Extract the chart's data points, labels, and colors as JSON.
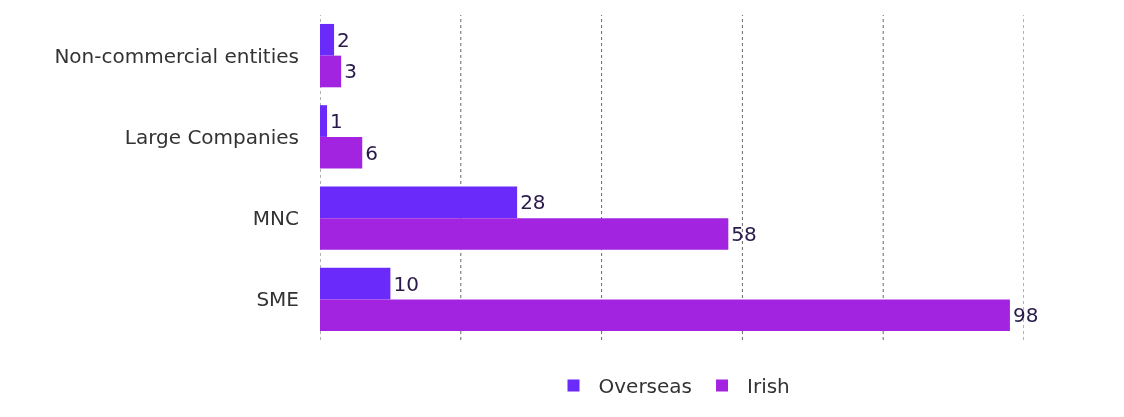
{
  "chart_data": {
    "type": "bar",
    "orientation": "horizontal",
    "categories": [
      "Non-commercial entities",
      "Large Companies",
      "MNC",
      "SME"
    ],
    "series": [
      {
        "name": "Overseas",
        "color": "#6a2bfa",
        "values": [
          2,
          1,
          28,
          10
        ]
      },
      {
        "name": "Irish",
        "color": "#a224e0",
        "values": [
          3,
          6,
          58,
          98
        ]
      }
    ],
    "xlim": [
      0,
      100
    ],
    "xticks": [
      {
        "value": 0,
        "label": null
      },
      {
        "value": 20,
        "label": null
      },
      {
        "value": 40,
        "label": null
      },
      {
        "value": 60,
        "label": null
      },
      {
        "value": 80,
        "label": null
      },
      {
        "value": 100,
        "label": null
      }
    ],
    "tick_labels": "y",
    "grid": "x",
    "data_labels": true,
    "legend": "bottom"
  }
}
